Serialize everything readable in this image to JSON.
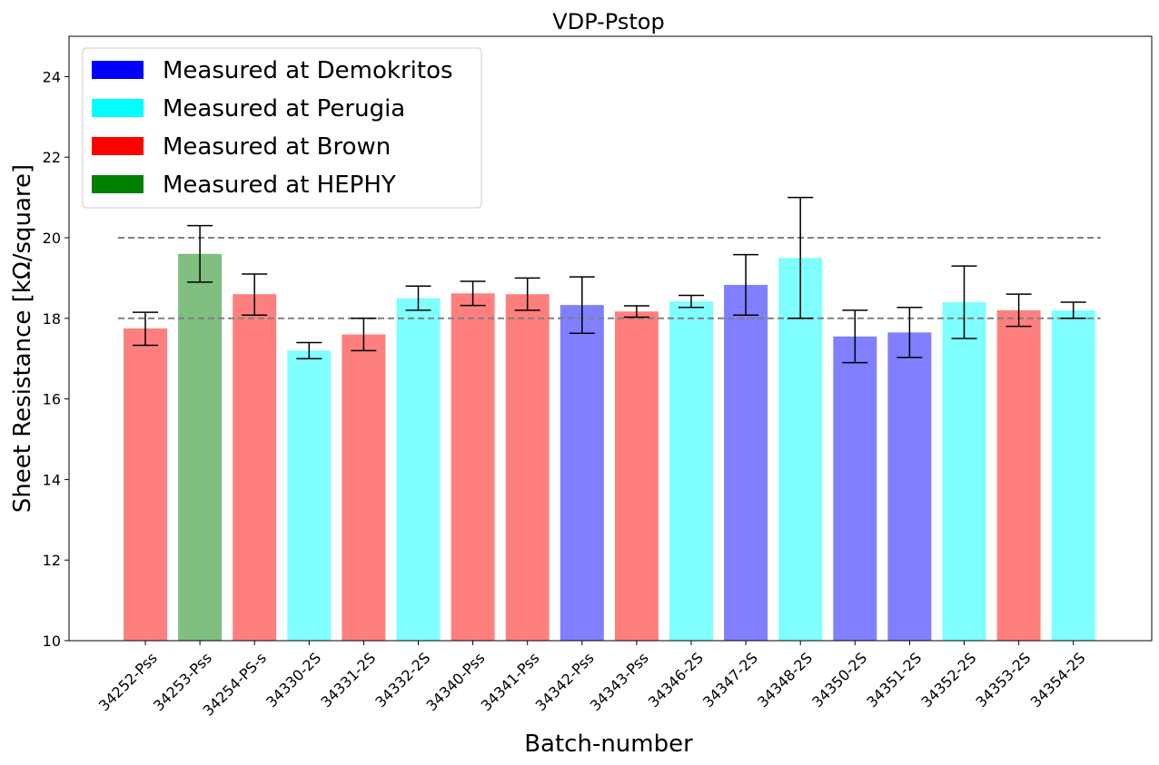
{
  "chart_data": {
    "type": "bar",
    "title": "VDP-Pstop",
    "xlabel": "Batch-number",
    "ylabel": "Sheet Resistance [kΩ/square]",
    "ylim": [
      10,
      25
    ],
    "yticks": [
      10,
      12,
      14,
      16,
      18,
      20,
      22,
      24
    ],
    "grid": false,
    "legend_position": "top-left",
    "legend": [
      {
        "label": "Measured at Demokritos",
        "color": "#0000ff"
      },
      {
        "label": "Measured at Perugia",
        "color": "#00ffff"
      },
      {
        "label": "Measured at Brown",
        "color": "#ff0000"
      },
      {
        "label": "Measured at HEPHY",
        "color": "#008000"
      }
    ],
    "bar_opacity": 0.5,
    "reference_lines": [
      18,
      20
    ],
    "categories": [
      "34252-Pss",
      "34253-Pss",
      "34254-PS-s",
      "34330-2S",
      "34331-2S",
      "34332-2S",
      "34340-Pss",
      "34341-Pss",
      "34342-Pss",
      "34343-Pss",
      "34346-2S",
      "34347-2S",
      "34348-2S",
      "34350-2S",
      "34351-2S",
      "34352-2S",
      "34353-2S",
      "34354-2S"
    ],
    "values": [
      17.75,
      19.6,
      18.6,
      17.2,
      17.6,
      18.5,
      18.62,
      18.6,
      18.33,
      18.17,
      18.42,
      18.83,
      19.5,
      17.55,
      17.65,
      18.4,
      18.2,
      18.2
    ],
    "error_low": [
      17.33,
      18.9,
      18.08,
      17.0,
      17.2,
      18.2,
      18.32,
      18.2,
      17.63,
      18.03,
      18.27,
      18.08,
      18.0,
      16.9,
      17.03,
      17.5,
      17.8,
      18.0
    ],
    "error_high": [
      18.15,
      20.3,
      19.1,
      17.4,
      18.0,
      18.8,
      18.92,
      19.0,
      19.03,
      18.31,
      18.57,
      19.58,
      21.0,
      18.2,
      18.27,
      19.3,
      18.6,
      18.4
    ],
    "lab": [
      "Brown",
      "HEPHY",
      "Brown",
      "Perugia",
      "Brown",
      "Perugia",
      "Brown",
      "Brown",
      "Demokritos",
      "Brown",
      "Perugia",
      "Demokritos",
      "Perugia",
      "Demokritos",
      "Demokritos",
      "Perugia",
      "Brown",
      "Perugia"
    ]
  }
}
